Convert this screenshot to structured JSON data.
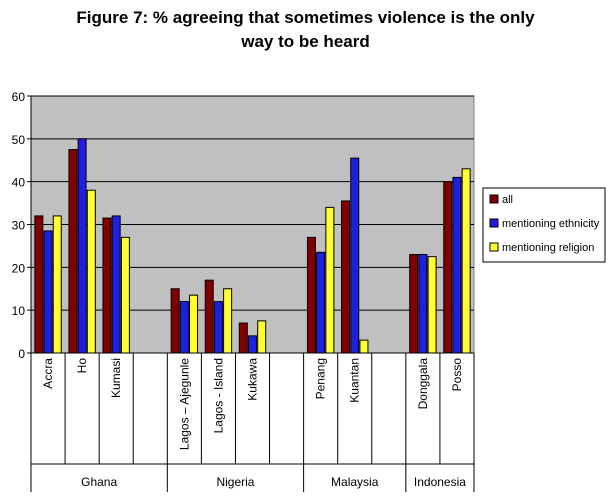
{
  "chart_data": {
    "type": "bar",
    "title_lines": [
      "Figure 7: % agreeing that sometimes violence is the only",
      "way to be heard"
    ],
    "ylim": [
      0,
      60
    ],
    "yticks": [
      0,
      10,
      20,
      30,
      40,
      50,
      60
    ],
    "grid": true,
    "legend_position": "right",
    "groups": [
      {
        "name": "Ghana",
        "categories": [
          "Accra",
          "Ho",
          "Kumasi"
        ]
      },
      {
        "name": "Nigeria",
        "categories": [
          "Lagos – Ajegunle",
          "Lagos - Island",
          "Kukawa"
        ]
      },
      {
        "name": "Malaysia",
        "categories": [
          "Penang",
          "Kuantan"
        ]
      },
      {
        "name": "Indonesia",
        "categories": [
          "Donggala",
          "Posso"
        ]
      }
    ],
    "categories": [
      "Accra",
      "Ho",
      "Kumasi",
      "",
      "Lagos – Ajegunle",
      "Lagos - Island",
      "Kukawa",
      "",
      "Penang",
      "Kuantan",
      "",
      "Donggala",
      "Posso"
    ],
    "series": [
      {
        "name": "all",
        "color": "#800000",
        "values": [
          32,
          47.5,
          31.5,
          null,
          15,
          17,
          7,
          null,
          27,
          35.5,
          null,
          23,
          40
        ]
      },
      {
        "name": "mentioning ethnicity",
        "color": "#1f1fe0",
        "values": [
          28.5,
          50,
          32,
          null,
          12,
          12,
          4,
          null,
          23.5,
          45.5,
          null,
          23,
          41
        ]
      },
      {
        "name": "mentioning religion",
        "color": "#ffff33",
        "values": [
          32,
          38,
          27,
          null,
          13.5,
          15,
          7.5,
          null,
          34,
          3,
          null,
          22.5,
          43
        ]
      }
    ]
  },
  "colors": {
    "plot_background": "#c0c0c0",
    "gridline": "#000000"
  }
}
